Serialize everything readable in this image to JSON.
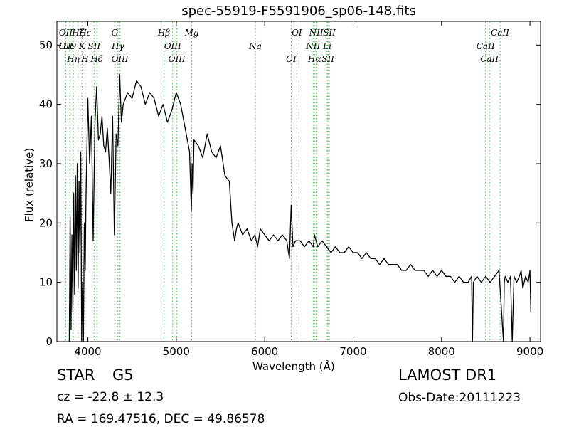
{
  "chart_data": {
    "type": "line",
    "title": "spec-55919-F5591906_sp06-148.fits",
    "xlabel": "Wavelength (Å)",
    "ylabel": "Flux (relative)",
    "xlim": [
      3650,
      9120
    ],
    "ylim": [
      0,
      54
    ],
    "xticks": [
      4000,
      5000,
      6000,
      7000,
      8000,
      9000
    ],
    "yticks": [
      0,
      10,
      20,
      30,
      40,
      50
    ],
    "grid": false,
    "series": [
      {
        "x": [
          3790,
          3800,
          3810,
          3820,
          3830,
          3840,
          3850,
          3860,
          3870,
          3880,
          3890,
          3900,
          3910,
          3920,
          3930,
          3940,
          3950,
          3960,
          3970,
          3980,
          3990,
          4000,
          4020,
          4040,
          4060,
          4080,
          4100,
          4120,
          4140,
          4160,
          4180,
          4200,
          4220,
          4240,
          4260,
          4280,
          4300,
          4320,
          4340,
          4360,
          4380,
          4400,
          4450,
          4500,
          4550,
          4600,
          4650,
          4700,
          4750,
          4800,
          4850,
          4900,
          4950,
          5000,
          5050,
          5100,
          5150,
          5170,
          5180,
          5190,
          5200,
          5250,
          5300,
          5350,
          5400,
          5450,
          5500,
          5550,
          5600,
          5630,
          5660,
          5680,
          5700,
          5750,
          5800,
          5850,
          5890,
          5920,
          5950,
          6000,
          6050,
          6100,
          6150,
          6200,
          6250,
          6280,
          6300,
          6320,
          6350,
          6400,
          6450,
          6500,
          6550,
          6563,
          6600,
          6650,
          6700,
          6750,
          6800,
          6850,
          6900,
          6950,
          7000,
          7050,
          7100,
          7150,
          7200,
          7250,
          7300,
          7350,
          7400,
          7450,
          7500,
          7550,
          7600,
          7650,
          7700,
          7750,
          7800,
          7850,
          7900,
          7950,
          8000,
          8050,
          8100,
          8150,
          8200,
          8250,
          8300,
          8340,
          8350,
          8360,
          8400,
          8450,
          8500,
          8550,
          8600,
          8650,
          8700,
          8710,
          8720,
          8750,
          8780,
          8800,
          8820,
          8850,
          8880,
          8900,
          8920,
          8950,
          8980,
          9000,
          9010
        ],
        "y": [
          0,
          21,
          2,
          18,
          5,
          25,
          8,
          28,
          12,
          30,
          9,
          27,
          15,
          32,
          0,
          10,
          0,
          20,
          12,
          25,
          33,
          41,
          30,
          38,
          17,
          37,
          43,
          34,
          35,
          38,
          33,
          32,
          36,
          31,
          25,
          38,
          18,
          35,
          33,
          45,
          37,
          40,
          42,
          41,
          44,
          43,
          40,
          42,
          41,
          38,
          40,
          37,
          39,
          42,
          40,
          36,
          32,
          22,
          30,
          25,
          34,
          33,
          31,
          35,
          32,
          31,
          33,
          28,
          27,
          20,
          17,
          19,
          20,
          18,
          19,
          17,
          18,
          16,
          19,
          18,
          17,
          18,
          17,
          18,
          17,
          14,
          23,
          16,
          17,
          17,
          16,
          17,
          16,
          18,
          16,
          17,
          16,
          15,
          16,
          15,
          15,
          16,
          15,
          15,
          14,
          15,
          14,
          14,
          13,
          14,
          13,
          13,
          13,
          12,
          12,
          13,
          12,
          12,
          12,
          11,
          12,
          11,
          12,
          11,
          11,
          10,
          11,
          10,
          10,
          11,
          0,
          10,
          11,
          10,
          11,
          10,
          11,
          12,
          0,
          10,
          11,
          10,
          11,
          0,
          11,
          10,
          11,
          12,
          9,
          11,
          10,
          12,
          5
        ]
      }
    ],
    "lines": [
      {
        "x": 3750,
        "labels": [
          "OII",
          "OII"
        ]
      },
      {
        "x": 3797,
        "labels": [
          "H9"
        ]
      },
      {
        "x": 3835,
        "labels": [
          "Hη"
        ]
      },
      {
        "x": 3889,
        "labels": [
          "Hζ"
        ]
      },
      {
        "x": 3933,
        "labels": [
          "K"
        ]
      },
      {
        "x": 3968,
        "labels": [
          "H"
        ]
      },
      {
        "x": 3970,
        "labels": [
          "Hε"
        ]
      },
      {
        "x": 4070,
        "labels": [
          "SII"
        ]
      },
      {
        "x": 4102,
        "labels": [
          "Hδ"
        ]
      },
      {
        "x": 4304,
        "labels": [
          "G"
        ]
      },
      {
        "x": 4340,
        "labels": [
          "Hγ"
        ]
      },
      {
        "x": 4363,
        "labels": [
          "OIII"
        ]
      },
      {
        "x": 4861,
        "labels": [
          "Hβ"
        ]
      },
      {
        "x": 4959,
        "labels": [
          "OIII"
        ]
      },
      {
        "x": 5007,
        "labels": [
          "OIII"
        ]
      },
      {
        "x": 5175,
        "labels": [
          "Mg"
        ]
      },
      {
        "x": 5894,
        "labels": [
          "Na"
        ]
      },
      {
        "x": 6300,
        "labels": [
          "OI"
        ]
      },
      {
        "x": 6364,
        "labels": [
          "OI"
        ]
      },
      {
        "x": 6548,
        "labels": [
          "NII"
        ]
      },
      {
        "x": 6563,
        "labels": [
          "Hα"
        ]
      },
      {
        "x": 6583,
        "labels": [
          "NII"
        ]
      },
      {
        "x": 6707,
        "labels": [
          "Li"
        ]
      },
      {
        "x": 6716,
        "labels": [
          "SII"
        ]
      },
      {
        "x": 6731,
        "labels": [
          "SII"
        ]
      },
      {
        "x": 8498,
        "labels": [
          "CaII"
        ]
      },
      {
        "x": 8542,
        "labels": [
          "CaII"
        ]
      },
      {
        "x": 8662,
        "labels": [
          "CaII"
        ]
      }
    ]
  },
  "info": {
    "class": "STAR",
    "subclass": "G5",
    "survey": "LAMOST DR1",
    "cz": "cz = -22.8 ± 12.3",
    "obs_date": "Obs-Date:20111223",
    "coords": "RA = 169.47516, DEC = 49.86578"
  }
}
